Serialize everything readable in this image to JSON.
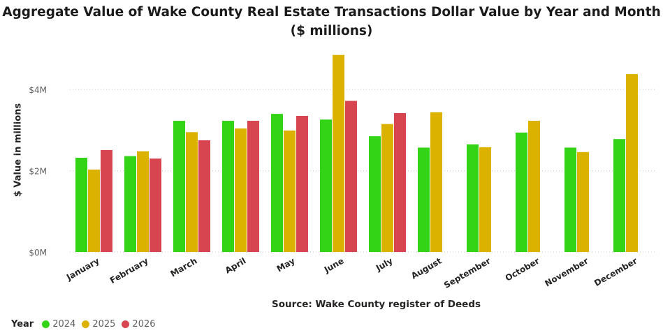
{
  "chart_data": {
    "type": "bar",
    "title": "Aggregate Value of Wake County Real Estate Transactions Dollar Value by Year and Month ($ millions)",
    "xlabel": "Source: Wake County register of Deeds",
    "ylabel": "$ Value in millions",
    "categories": [
      "January",
      "February",
      "March",
      "April",
      "May",
      "June",
      "July",
      "August",
      "September",
      "October",
      "November",
      "December"
    ],
    "series": [
      {
        "name": "2024",
        "color": "#33d416",
        "values": [
          2.32,
          2.36,
          3.23,
          3.23,
          3.4,
          3.26,
          2.85,
          2.57,
          2.65,
          2.94,
          2.57,
          2.78
        ]
      },
      {
        "name": "2025",
        "color": "#dbb200",
        "values": [
          2.03,
          2.48,
          2.95,
          3.04,
          2.99,
          4.85,
          3.15,
          3.44,
          2.58,
          3.23,
          2.46,
          4.38
        ]
      },
      {
        "name": "2026",
        "color": "#d64550",
        "values": [
          2.51,
          2.3,
          2.75,
          3.23,
          3.35,
          3.72,
          3.42,
          null,
          null,
          null,
          null,
          null
        ]
      }
    ],
    "y_ticks": [
      0,
      2,
      4
    ],
    "y_tick_labels": [
      "$0M",
      "$2M",
      "$4M"
    ],
    "ylim": [
      0,
      5
    ],
    "grid": true,
    "legend_title": "Year",
    "legend_position": "bottom-left"
  }
}
